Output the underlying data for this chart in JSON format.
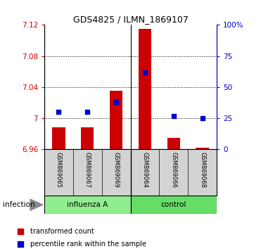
{
  "title": "GDS4825 / ILMN_1869107",
  "samples": [
    "GSM869065",
    "GSM869067",
    "GSM869069",
    "GSM869064",
    "GSM869066",
    "GSM869068"
  ],
  "group_labels": [
    "influenza A",
    "control"
  ],
  "transformed_counts": [
    6.988,
    6.988,
    7.035,
    7.115,
    6.975,
    6.962
  ],
  "percentile_ranks": [
    30,
    30,
    38,
    62,
    27,
    25
  ],
  "ylim_left": [
    6.96,
    7.12
  ],
  "ylim_right": [
    0,
    100
  ],
  "yticks_left": [
    6.96,
    7.0,
    7.04,
    7.08,
    7.12
  ],
  "ytick_labels_left": [
    "6.96",
    "7",
    "7.04",
    "7.08",
    "7.12"
  ],
  "yticks_right": [
    0,
    25,
    50,
    75,
    100
  ],
  "ytick_labels_right": [
    "0",
    "25",
    "50",
    "75",
    "100%"
  ],
  "bar_bottom": 6.96,
  "left_color": "#CC0000",
  "right_color": "#0000CC",
  "bg_plot": "#FFFFFF",
  "bg_xtick": "#D3D3D3",
  "infection_label": "infection",
  "legend_red": "transformed count",
  "legend_blue": "percentile rank within the sample",
  "grid_lines": [
    7.0,
    7.04,
    7.08
  ],
  "influenza_color": "#90EE90",
  "control_color": "#66DD66"
}
